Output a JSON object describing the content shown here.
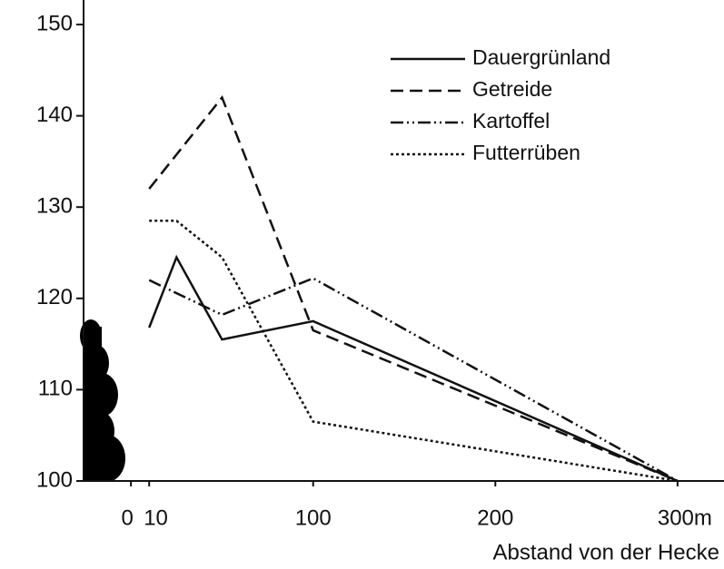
{
  "chart_data": {
    "type": "line",
    "xlabel": "Abstand von der Hecke",
    "xlim": [
      -26,
      323
    ],
    "ylim": [
      100,
      150
    ],
    "xticks": [
      0,
      10,
      100,
      200,
      {
        "value": 300,
        "label": "300m"
      }
    ],
    "yticks": [
      100,
      110,
      120,
      130,
      140,
      150
    ],
    "series": [
      {
        "name": "Dauergrünland",
        "color": "#111111",
        "style": "solid",
        "x": [
          10,
          25,
          50,
          100,
          300
        ],
        "values": [
          116.8,
          124.5,
          115.5,
          117.5,
          100
        ]
      },
      {
        "name": "Getreide",
        "color": "#111111",
        "style": "dashed",
        "x": [
          10,
          50,
          100,
          300
        ],
        "values": [
          132,
          142,
          116.5,
          100
        ]
      },
      {
        "name": "Kartoffel",
        "color": "#111111",
        "style": "dashdotdot",
        "x": [
          10,
          50,
          100,
          300
        ],
        "values": [
          122,
          118.2,
          122.2,
          100
        ]
      },
      {
        "name": "Futterrüben",
        "color": "#111111",
        "style": "dotted",
        "x": [
          10,
          25,
          50,
          100,
          300
        ],
        "values": [
          128.5,
          128.5,
          124.5,
          106.5,
          100
        ]
      }
    ]
  }
}
